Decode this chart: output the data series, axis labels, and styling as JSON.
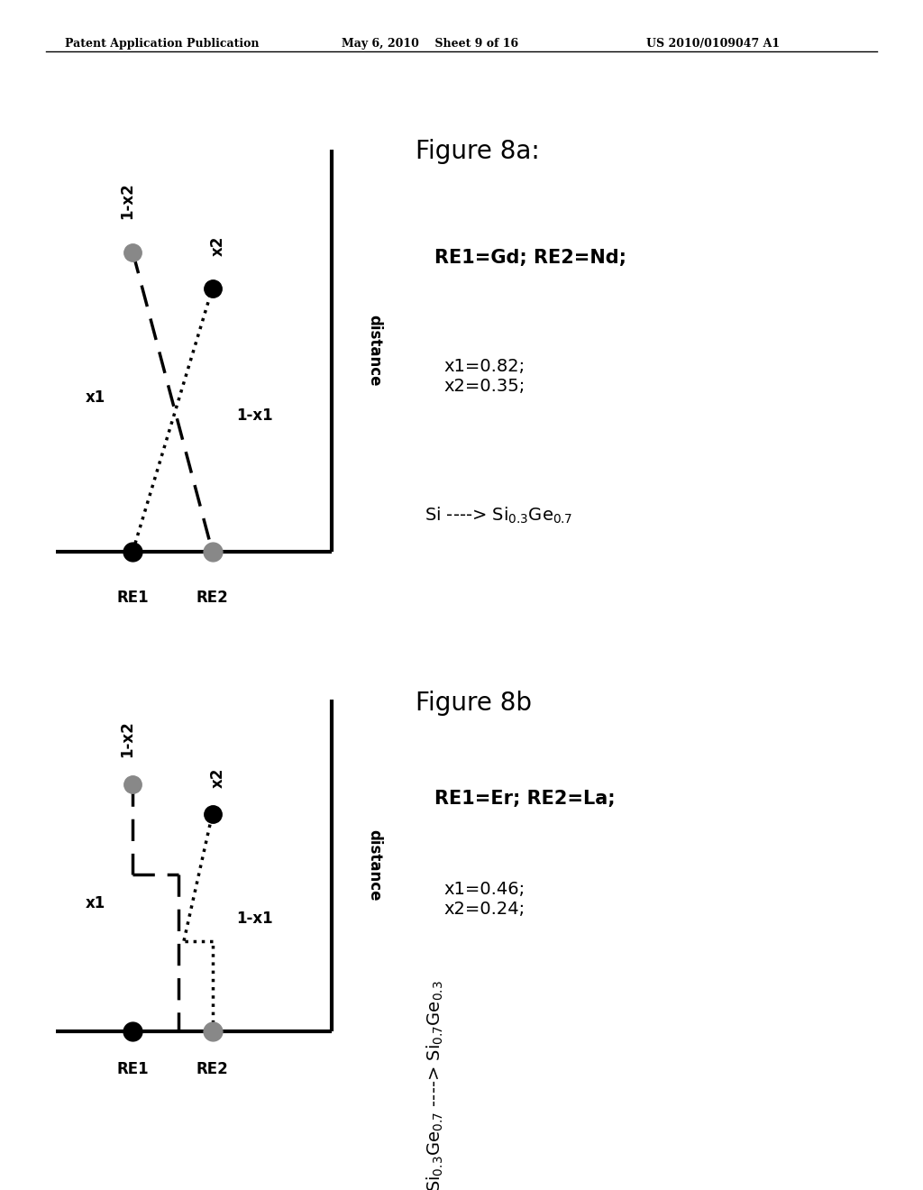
{
  "header_left": "Patent Application Publication",
  "header_mid": "May 6, 2010    Sheet 9 of 16",
  "header_right": "US 2010/0109047 A1",
  "background_color": "#ffffff",
  "fig8a": {
    "title": "Figure 8a:",
    "re1_label": "RE1",
    "re2_label": "RE2",
    "distance_label": "distance",
    "x1_label": "x1",
    "one_minus_x1_label": "1-x1",
    "x2_label": "x2",
    "one_minus_x2_label": "1-x2",
    "re1_desc": "RE1=Gd; RE2=Nd;",
    "params": "x1=0.82;\nx2=0.35;",
    "material_line1": "Si ----> Si",
    "material_sub1": "0.3",
    "material_mid": "Ge",
    "material_sub2": "0.7"
  },
  "fig8b": {
    "title": "Figure 8b",
    "re1_label": "RE1",
    "re2_label": "RE2",
    "distance_label": "distance",
    "x1_label": "x1",
    "one_minus_x1_label": "1-x1",
    "x2_label": "x2",
    "one_minus_x2_label": "1-x2",
    "re1_desc": "RE1=Er; RE2=La;",
    "params": "x1=0.46;\nx2=0.24;"
  },
  "black_color": "#000000",
  "gray_color": "#888888",
  "dot_size": 150
}
